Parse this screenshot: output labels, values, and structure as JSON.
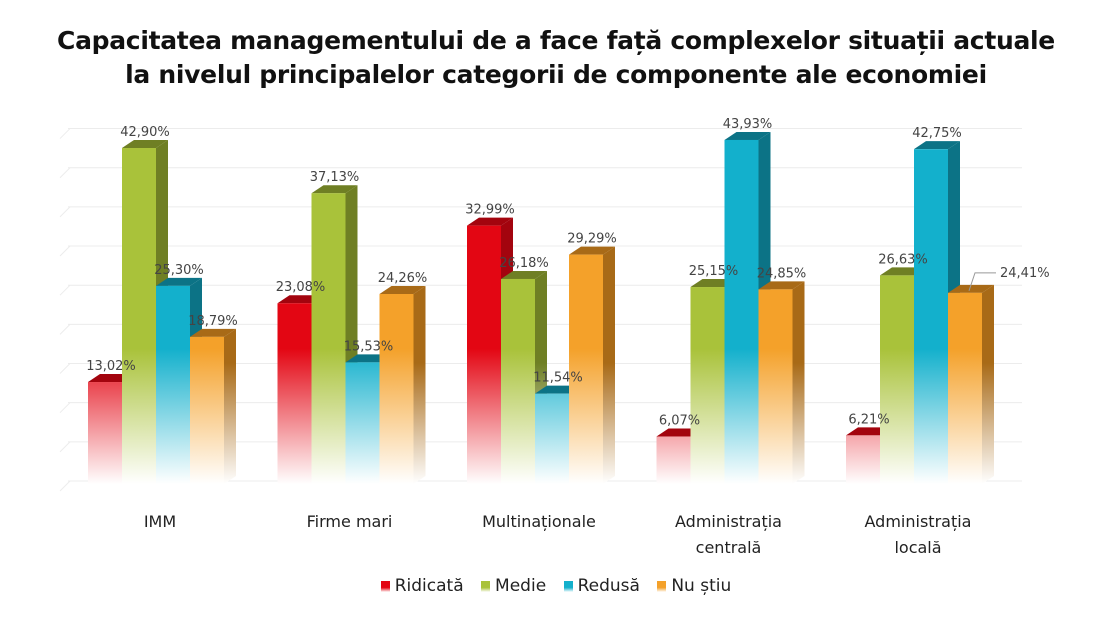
{
  "chart_data": {
    "type": "bar",
    "style": "3d-clustered-column",
    "title": "Capacitatea managementului de a face față complexelor situații actuale la nivelul principalelor categorii de componente ale economiei",
    "title_lines": [
      "Capacitatea managementului de a face față complexelor situații actuale",
      "la nivelul principalelor categorii de componente ale economiei"
    ],
    "xlabel": "",
    "ylabel": "",
    "ylim": [
      0,
      45
    ],
    "grid": true,
    "legend_position": "bottom",
    "categories": [
      "IMM",
      "Firme mari",
      "Multinaționale",
      "Administrația centrală",
      "Administrația locală"
    ],
    "category_lines": [
      [
        "IMM"
      ],
      [
        "Firme mari"
      ],
      [
        "Multinaționale"
      ],
      [
        "Administrația",
        "centrală"
      ],
      [
        "Administrația",
        "locală"
      ]
    ],
    "series": [
      {
        "name": "Ridicată",
        "color": "#e30613",
        "side": "#a3040e",
        "values": [
          13.02,
          23.08,
          32.99,
          6.07,
          6.21
        ],
        "labels": [
          "13,02%",
          "23,08%",
          "32,99%",
          "6,07%",
          "6,21%"
        ]
      },
      {
        "name": "Medie",
        "color": "#a9c23a",
        "side": "#6f7f24",
        "values": [
          42.9,
          37.13,
          26.18,
          25.15,
          26.63
        ],
        "labels": [
          "42,90%",
          "37,13%",
          "26,18%",
          "25,15%",
          "26,63%"
        ]
      },
      {
        "name": "Redusă",
        "color": "#13b0cc",
        "side": "#0c7386",
        "values": [
          25.3,
          15.53,
          11.54,
          43.93,
          42.75
        ],
        "labels": [
          "25,30%",
          "15,53%",
          "11,54%",
          "43,93%",
          "42,75%"
        ]
      },
      {
        "name": "Nu știu",
        "color": "#f4a12a",
        "side": "#a86a17",
        "values": [
          18.79,
          24.26,
          29.29,
          24.85,
          24.41
        ],
        "labels": [
          "18,79%",
          "24,26%",
          "29,29%",
          "24,85%",
          "24,41%"
        ]
      }
    ]
  }
}
